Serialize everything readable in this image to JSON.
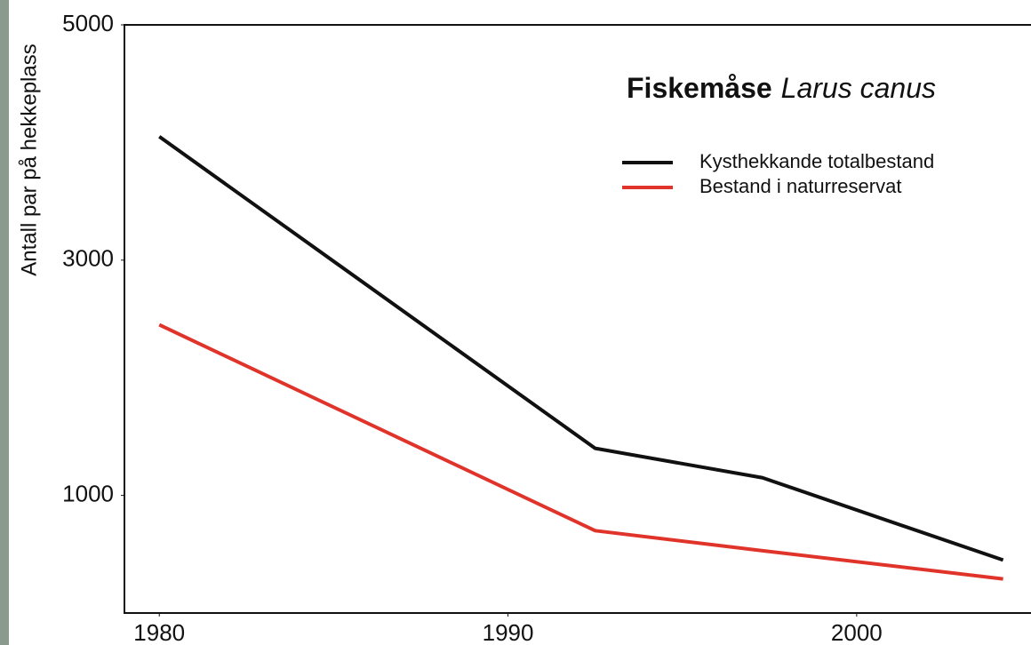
{
  "chart_data": {
    "type": "line",
    "title": "Fiskemåse",
    "species": "Larus canus",
    "y_label": "Antall par på hekkeplass",
    "x": [
      1980,
      1992.5,
      1997.3,
      2004.2
    ],
    "series": [
      {
        "name": "Kysthekkande totalbestand",
        "color": "#111111",
        "values": [
          4050,
          1400,
          1150,
          450
        ]
      },
      {
        "name": "Bestand i naturreservat",
        "color": "#e0342b",
        "values": [
          2450,
          700,
          530,
          290
        ]
      }
    ],
    "xlim": [
      1979,
      2005
    ],
    "xticks": [
      1980,
      1990,
      2000
    ],
    "ylim": [
      0,
      5000
    ],
    "yticks": [
      1000,
      3000,
      5000
    ],
    "grid": false
  }
}
